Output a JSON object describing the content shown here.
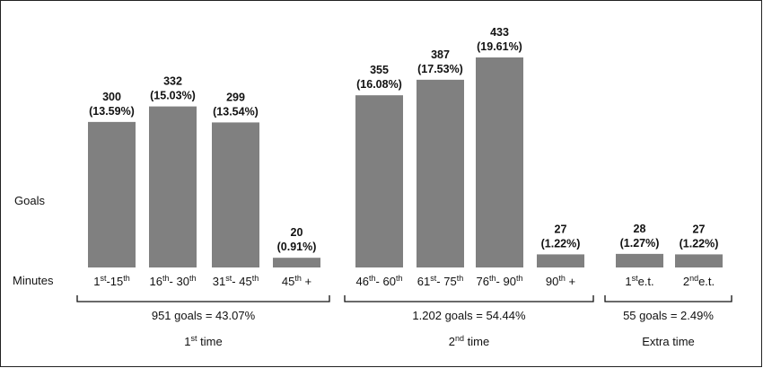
{
  "chart_data": {
    "type": "bar",
    "ylabel": "Goals",
    "xlabel": "Minutes",
    "ylim": [
      0,
      433
    ],
    "categories": [
      {
        "main": "1",
        "sup": "st",
        "rest": "-15",
        "sup2": "th"
      },
      {
        "main": "16",
        "sup": "th",
        "rest": "- 30",
        "sup2": "th"
      },
      {
        "main": "31",
        "sup": "st",
        "rest": "- 45",
        "sup2": "th"
      },
      {
        "main": "45",
        "sup": "th",
        "rest": " +",
        "sup2": ""
      },
      {
        "main": "46",
        "sup": "th",
        "rest": "- 60",
        "sup2": "th"
      },
      {
        "main": "61",
        "sup": "st",
        "rest": "- 75",
        "sup2": "th"
      },
      {
        "main": "76",
        "sup": "th",
        "rest": "- 90",
        "sup2": "th"
      },
      {
        "main": "90",
        "sup": "th",
        "rest": " +",
        "sup2": ""
      },
      {
        "main": "1",
        "sup": "st",
        "rest": "e.t.",
        "sup2": ""
      },
      {
        "main": "2",
        "sup": "nd",
        "rest": "e.t.",
        "sup2": ""
      }
    ],
    "values": [
      300,
      332,
      299,
      20,
      355,
      387,
      433,
      27,
      28,
      27
    ],
    "percent_labels": [
      "(13.59%)",
      "(15.03%)",
      "(13.54%)",
      "(0.91%)",
      "(16.08%)",
      "(17.53%)",
      "(19.61%)",
      "(1.22%)",
      "(1.27%)",
      "(1.22%)"
    ],
    "groups": [
      {
        "summary": "951 goals = 43.07%",
        "name_main": "1",
        "name_sup": "st",
        "name_rest": " time",
        "first_bar": 0,
        "last_bar": 3
      },
      {
        "summary": "1.202 goals = 54.44%",
        "name_main": "2",
        "name_sup": "nd",
        "name_rest": " time",
        "first_bar": 4,
        "last_bar": 7
      },
      {
        "summary": "55 goals = 2.49%",
        "name_main": "",
        "name_sup": "",
        "name_rest": "Extra time",
        "first_bar": 8,
        "last_bar": 9
      }
    ],
    "colors": {
      "bar": "#808080"
    }
  }
}
